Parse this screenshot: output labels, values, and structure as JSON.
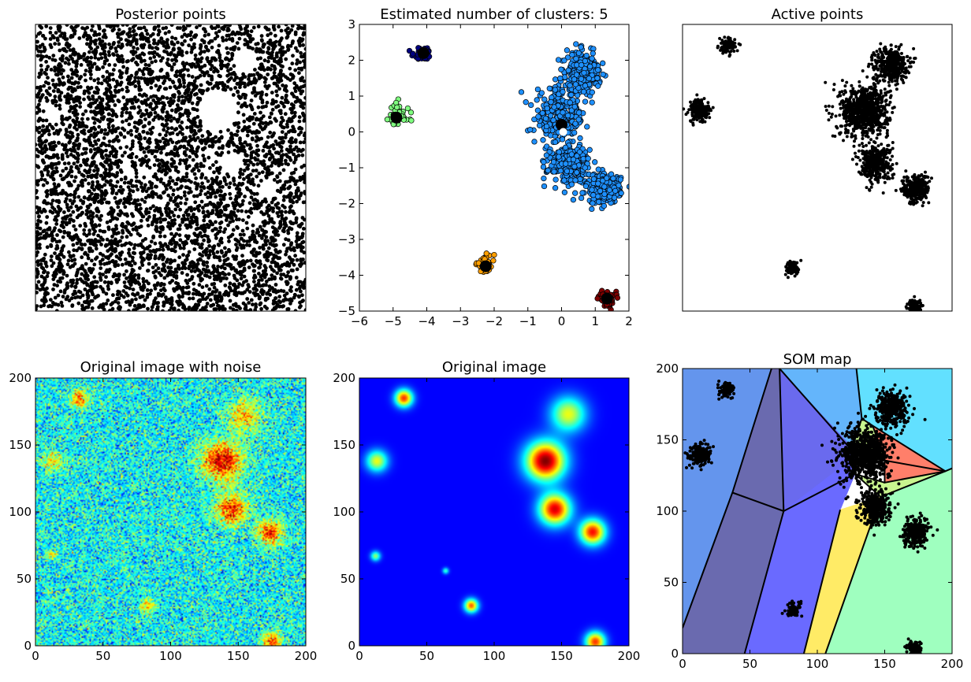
{
  "figure": {
    "background": "#ffffff"
  },
  "chart_data": [
    {
      "id": "posterior",
      "type": "scatter",
      "title": "Posterior points",
      "axes_visible": false,
      "xlim": [
        0,
        200
      ],
      "ylim": [
        0,
        200
      ],
      "marker_color": "#000000",
      "voids": [
        {
          "x": 135,
          "y": 140,
          "r": 15
        },
        {
          "x": 155,
          "y": 175,
          "r": 9
        },
        {
          "x": 145,
          "y": 103,
          "r": 8
        },
        {
          "x": 172,
          "y": 85,
          "r": 7
        },
        {
          "x": 33,
          "y": 185,
          "r": 5
        },
        {
          "x": 12,
          "y": 138,
          "r": 6
        }
      ],
      "density": "dense uniform scatter"
    },
    {
      "id": "clusters",
      "type": "scatter",
      "title": "Estimated number of clusters: 5",
      "xlim": [
        -6,
        2
      ],
      "ylim": [
        -5,
        3
      ],
      "xticks": [
        "−6",
        "−5",
        "−4",
        "−3",
        "−2",
        "−1",
        "0",
        "1",
        "2"
      ],
      "yticks": [
        "−5",
        "−4",
        "−3",
        "−2",
        "−1",
        "0",
        "1",
        "2",
        "3"
      ],
      "xtick_values": [
        -6,
        -5,
        -4,
        -3,
        -2,
        -1,
        0,
        1,
        2
      ],
      "ytick_values": [
        -5,
        -4,
        -3,
        -2,
        -1,
        0,
        1,
        2,
        3
      ],
      "series": [
        {
          "color": "#00007f",
          "center": [
            -4.1,
            2.2
          ],
          "blobs": [
            {
              "x": -4.1,
              "y": 2.2,
              "sx": 0.15,
              "sy": 0.08
            }
          ]
        },
        {
          "color": "#7fff7f",
          "center": [
            -4.9,
            0.4
          ],
          "blobs": [
            {
              "x": -4.9,
              "y": 0.45,
              "sx": 0.18,
              "sy": 0.18
            }
          ]
        },
        {
          "color": "#ff9f00",
          "center": [
            -2.25,
            -3.75
          ],
          "blobs": [
            {
              "x": -2.25,
              "y": -3.7,
              "sx": 0.13,
              "sy": 0.12
            }
          ]
        },
        {
          "color": "#7f0000",
          "center": [
            1.35,
            -4.65
          ],
          "blobs": [
            {
              "x": 1.35,
              "y": -4.65,
              "sx": 0.13,
              "sy": 0.1
            }
          ]
        },
        {
          "color": "#1e90ff",
          "center": [
            0.0,
            0.2
          ],
          "blobs": [
            {
              "x": -0.05,
              "y": 0.45,
              "sx": 0.38,
              "sy": 0.4
            },
            {
              "x": 0.65,
              "y": 1.7,
              "sx": 0.25,
              "sy": 0.25
            },
            {
              "x": 0.2,
              "y": -0.9,
              "sx": 0.3,
              "sy": 0.25
            },
            {
              "x": 1.25,
              "y": -1.6,
              "sx": 0.25,
              "sy": 0.2
            }
          ]
        }
      ]
    },
    {
      "id": "active",
      "type": "scatter",
      "title": "Active points",
      "axes_visible": false,
      "xlim": [
        0,
        200
      ],
      "ylim": [
        0,
        200
      ],
      "marker_color": "#000000",
      "blobs": [
        {
          "x": 33,
          "y": 185,
          "sx": 3,
          "sy": 2.5
        },
        {
          "x": 13,
          "y": 140,
          "sx": 4,
          "sy": 4
        },
        {
          "x": 135,
          "y": 140,
          "sx": 9,
          "sy": 9
        },
        {
          "x": 155,
          "y": 172,
          "sx": 6,
          "sy": 6
        },
        {
          "x": 143,
          "y": 103,
          "sx": 6,
          "sy": 6
        },
        {
          "x": 173,
          "y": 85,
          "sx": 5,
          "sy": 5
        },
        {
          "x": 82,
          "y": 30,
          "sx": 2.5,
          "sy": 2.5
        },
        {
          "x": 172,
          "y": 3,
          "sx": 3,
          "sy": 2.5
        }
      ]
    },
    {
      "id": "noisy",
      "type": "heatmap",
      "title": "Original image with noise",
      "xlim": [
        0,
        200
      ],
      "ylim": [
        0,
        200
      ],
      "xticks": [
        "0",
        "50",
        "100",
        "150",
        "200"
      ],
      "yticks": [
        "0",
        "50",
        "100",
        "150",
        "200"
      ],
      "tick_values": [
        0,
        50,
        100,
        150,
        200
      ],
      "colormap": "jet",
      "noise": true,
      "sources": [
        {
          "x": 138,
          "y": 138,
          "r": 10,
          "a": 1.0
        },
        {
          "x": 155,
          "y": 172,
          "r": 9,
          "a": 0.55
        },
        {
          "x": 145,
          "y": 102,
          "r": 8,
          "a": 0.85
        },
        {
          "x": 173,
          "y": 85,
          "r": 6.5,
          "a": 0.8
        },
        {
          "x": 33,
          "y": 185,
          "r": 4.5,
          "a": 0.75
        },
        {
          "x": 13,
          "y": 138,
          "r": 5.5,
          "a": 0.45
        },
        {
          "x": 12,
          "y": 67,
          "r": 2.5,
          "a": 0.5
        },
        {
          "x": 65,
          "y": 57,
          "r": 1.5,
          "a": 0.25
        },
        {
          "x": 83,
          "y": 30,
          "r": 3.5,
          "a": 0.65
        },
        {
          "x": 175,
          "y": 3,
          "r": 5,
          "a": 0.8
        }
      ]
    },
    {
      "id": "original",
      "type": "heatmap",
      "title": "Original image",
      "xlim": [
        0,
        200
      ],
      "ylim": [
        0,
        200
      ],
      "xticks": [
        "0",
        "50",
        "100",
        "150",
        "200"
      ],
      "yticks": [
        "0",
        "50",
        "100",
        "150",
        "200"
      ],
      "tick_values": [
        0,
        50,
        100,
        150,
        200
      ],
      "colormap": "jet",
      "noise": false,
      "sources": [
        {
          "x": 138,
          "y": 138,
          "r": 10,
          "a": 1.0
        },
        {
          "x": 155,
          "y": 173,
          "r": 9,
          "a": 0.55
        },
        {
          "x": 145,
          "y": 102,
          "r": 8,
          "a": 0.9
        },
        {
          "x": 173,
          "y": 85,
          "r": 6.5,
          "a": 0.85
        },
        {
          "x": 33,
          "y": 185,
          "r": 4.5,
          "a": 0.8
        },
        {
          "x": 13,
          "y": 138,
          "r": 5.5,
          "a": 0.55
        },
        {
          "x": 12,
          "y": 67,
          "r": 2.5,
          "a": 0.45
        },
        {
          "x": 64,
          "y": 56,
          "r": 1.6,
          "a": 0.35
        },
        {
          "x": 83,
          "y": 30,
          "r": 3.5,
          "a": 0.75
        },
        {
          "x": 175,
          "y": 3,
          "r": 5,
          "a": 0.8
        }
      ]
    },
    {
      "id": "som",
      "type": "voronoi",
      "title": "SOM map",
      "xlim": [
        0,
        200
      ],
      "ylim": [
        0,
        200
      ],
      "xticks": [
        "0",
        "50",
        "100",
        "150",
        "200"
      ],
      "yticks": [
        "0",
        "50",
        "100",
        "150",
        "200"
      ],
      "tick_values": [
        0,
        50,
        100,
        150,
        200
      ],
      "regions": [
        {
          "color": "#6495ed",
          "pts": [
            [
              0,
              200
            ],
            [
              66,
              200
            ],
            [
              37,
              113
            ],
            [
              0,
              18
            ]
          ]
        },
        {
          "color": "#6a6aaf",
          "pts": [
            [
              66,
              200
            ],
            [
              72,
              200
            ],
            [
              75,
              100
            ],
            [
              46,
              0
            ],
            [
              0,
              0
            ],
            [
              0,
              18
            ],
            [
              37,
              113
            ]
          ]
        },
        {
          "color": "#6a6aee",
          "pts": [
            [
              72,
              200
            ],
            [
              126,
              145
            ],
            [
              129,
              139
            ],
            [
              75,
              100
            ]
          ]
        },
        {
          "color": "#6a6aff",
          "pts": [
            [
              75,
              100
            ],
            [
              129,
              139
            ],
            [
              128,
              126
            ],
            [
              117,
              101
            ],
            [
              90,
              0
            ],
            [
              46,
              0
            ]
          ]
        },
        {
          "color": "#64b5fb",
          "pts": [
            [
              72,
              200
            ],
            [
              129,
              200
            ],
            [
              133,
              165
            ],
            [
              126,
              145
            ]
          ]
        },
        {
          "color": "#62e0ff",
          "pts": [
            [
              129,
              200
            ],
            [
              200,
              200
            ],
            [
              200,
              130
            ],
            [
              195,
              128
            ],
            [
              141,
              160
            ],
            [
              133,
              165
            ]
          ]
        },
        {
          "color": "#c9f58f",
          "pts": [
            [
              133,
              165
            ],
            [
              141,
              160
            ],
            [
              150,
              137
            ],
            [
              126,
              145
            ]
          ]
        },
        {
          "color": "#ff7f6a",
          "pts": [
            [
              141,
              160
            ],
            [
              195,
              128
            ],
            [
              150,
              120
            ],
            [
              150,
              137
            ]
          ]
        },
        {
          "color": "#c9f58f",
          "pts": [
            [
              150,
              120
            ],
            [
              195,
              128
            ],
            [
              147,
              110
            ],
            [
              128,
              126
            ]
          ]
        },
        {
          "color": "#ffeb66",
          "pts": [
            [
              117,
              101
            ],
            [
              147,
              110
            ],
            [
              106,
              0
            ],
            [
              90,
              0
            ]
          ]
        },
        {
          "color": "#9fffbf",
          "pts": [
            [
              147,
              110
            ],
            [
              195,
              128
            ],
            [
              200,
              130
            ],
            [
              200,
              0
            ],
            [
              106,
              0
            ]
          ]
        }
      ],
      "lines": [
        [
          [
            0,
            18
          ],
          [
            37,
            113
          ],
          [
            66,
            200
          ]
        ],
        [
          [
            37,
            113
          ],
          [
            75,
            100
          ]
        ],
        [
          [
            72,
            200
          ],
          [
            75,
            100
          ],
          [
            46,
            0
          ]
        ],
        [
          [
            72,
            200
          ],
          [
            129,
            139
          ],
          [
            195,
            128
          ],
          [
            200,
            130
          ]
        ],
        [
          [
            75,
            100
          ],
          [
            128,
            126
          ],
          [
            129,
            139
          ]
        ],
        [
          [
            129,
            200
          ],
          [
            133,
            165
          ],
          [
            126,
            145
          ]
        ],
        [
          [
            133,
            165
          ],
          [
            141,
            160
          ],
          [
            195,
            128
          ]
        ],
        [
          [
            141,
            160
          ],
          [
            150,
            137
          ],
          [
            150,
            120
          ],
          [
            195,
            128
          ]
        ],
        [
          [
            128,
            126
          ],
          [
            150,
            120
          ]
        ],
        [
          [
            117,
            101
          ],
          [
            90,
            0
          ]
        ],
        [
          [
            128,
            126
          ],
          [
            147,
            110
          ],
          [
            106,
            0
          ]
        ],
        [
          [
            147,
            110
          ],
          [
            195,
            128
          ]
        ]
      ],
      "blobs": [
        {
          "x": 33,
          "y": 185,
          "sx": 3,
          "sy": 2.5
        },
        {
          "x": 13,
          "y": 140,
          "sx": 4,
          "sy": 4
        },
        {
          "x": 135,
          "y": 140,
          "sx": 9,
          "sy": 9
        },
        {
          "x": 155,
          "y": 172,
          "sx": 6,
          "sy": 6
        },
        {
          "x": 143,
          "y": 103,
          "sx": 6,
          "sy": 6
        },
        {
          "x": 173,
          "y": 85,
          "sx": 5,
          "sy": 5
        },
        {
          "x": 82,
          "y": 30,
          "sx": 2.5,
          "sy": 2.5
        },
        {
          "x": 172,
          "y": 3,
          "sx": 3,
          "sy": 2.5
        }
      ]
    }
  ]
}
